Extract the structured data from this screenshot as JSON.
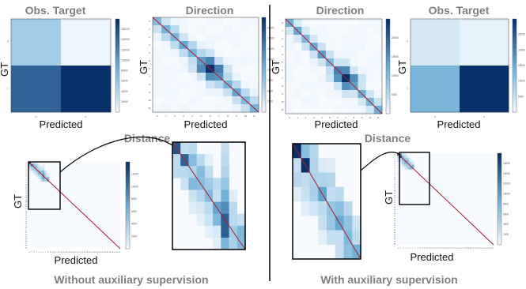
{
  "colors": {
    "cmap_low": "#f7fbff",
    "cmap_mid": "#6baed6",
    "cmap_high": "#08306b",
    "diagonal": "#b2182b",
    "title_gray": "#7f7f7f",
    "divider": "#000000"
  },
  "chart_data": [
    {
      "type": "heatmap",
      "panel": "left-obs-target",
      "title": "Obs. Target",
      "xlabel": "Predicted",
      "ylabel": "GT",
      "matrix": [
        [
          0.3,
          0.04
        ],
        [
          0.8,
          1.0
        ]
      ],
      "colorbar_ticks": [
        "20000",
        "40000",
        "60000",
        "80000",
        "100000",
        "120000",
        "140000",
        "160000"
      ]
    },
    {
      "type": "heatmap",
      "panel": "left-direction",
      "title": "Direction",
      "xlabel": "Predicted",
      "ylabel": "GT",
      "size": 12,
      "peak": [
        6,
        6
      ],
      "colorbar_ticks": [
        "2500",
        "5000",
        "7500",
        "10000",
        "12500",
        "15000",
        "17500",
        "20000"
      ]
    },
    {
      "type": "heatmap",
      "panel": "left-distance",
      "title": "Distance",
      "xlabel": "Predicted",
      "ylabel": "GT",
      "size": 40,
      "colorbar_ticks": [
        "2000",
        "4000",
        "6000",
        "8000",
        "10000",
        "12000"
      ]
    },
    {
      "type": "heatmap",
      "panel": "right-direction",
      "title": "Direction",
      "xlabel": "Predicted",
      "ylabel": "GT",
      "size": 12,
      "peak": [
        7,
        7
      ],
      "colorbar_ticks": [
        "5000",
        "10000",
        "15000",
        "20000"
      ]
    },
    {
      "type": "heatmap",
      "panel": "right-obs-target",
      "title": "Obs. Target",
      "xlabel": "Predicted",
      "ylabel": "GT",
      "matrix": [
        [
          0.12,
          0.06
        ],
        [
          0.45,
          1.0
        ]
      ],
      "colorbar_ticks": [
        "5000",
        "10000",
        "15000",
        "20000",
        "25000"
      ]
    },
    {
      "type": "heatmap",
      "panel": "right-distance",
      "title": "Distance",
      "xlabel": "Predicted",
      "ylabel": "GT",
      "size": 40,
      "colorbar_ticks": [
        "2000",
        "4000",
        "6000",
        "8000",
        "10000",
        "12000",
        "14000",
        "16000"
      ]
    }
  ],
  "captions": {
    "left": "Without auxiliary supervision",
    "right": "With auxiliary supervision"
  }
}
